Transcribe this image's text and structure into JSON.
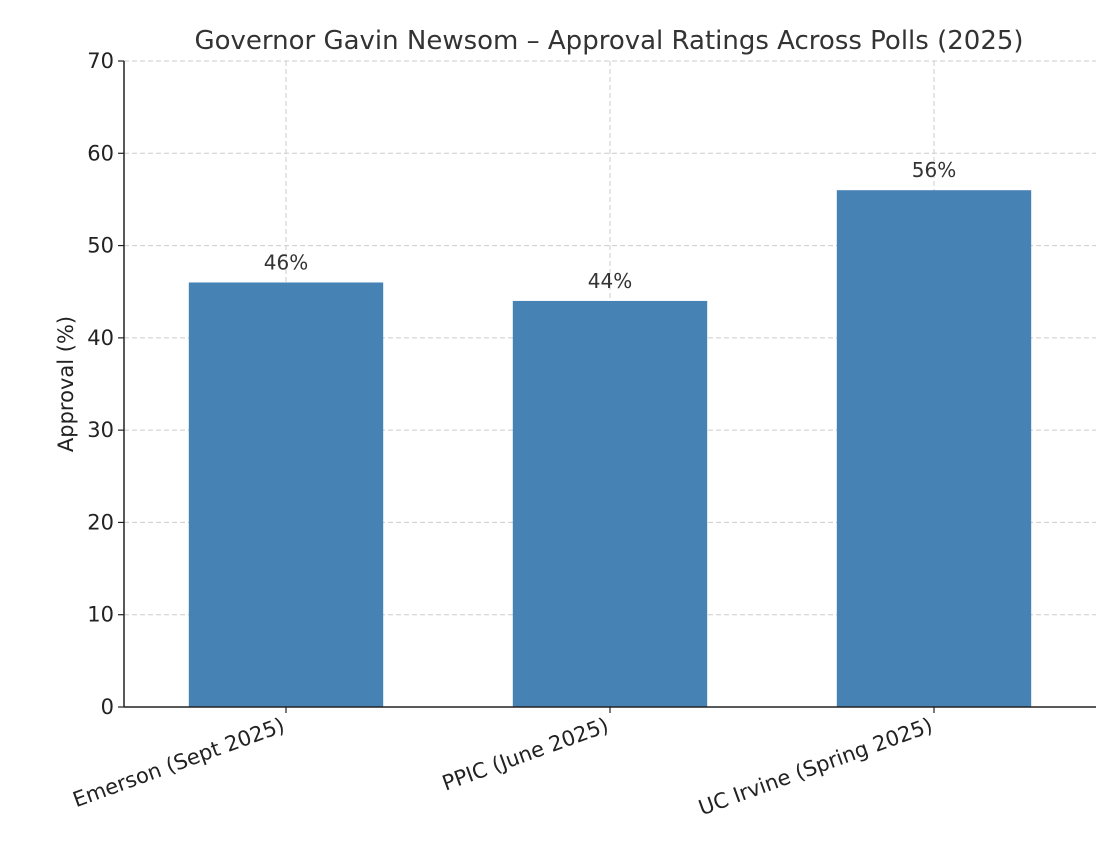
{
  "chart_data": {
    "type": "bar",
    "title": "Governor Gavin Newsom – Approval Ratings Across Polls (2025)",
    "xlabel": "",
    "ylabel": "Approval (%)",
    "categories": [
      "Emerson (Sept 2025)",
      "PPIC (June 2025)",
      "UC Irvine (Spring 2025)"
    ],
    "values": [
      46,
      44,
      56
    ],
    "data_labels": [
      "46%",
      "44%",
      "56%"
    ],
    "ylim": [
      0,
      70
    ],
    "yticks": [
      0,
      10,
      20,
      30,
      40,
      50,
      60,
      70
    ],
    "grid": true,
    "bar_color": "#4682b4"
  }
}
